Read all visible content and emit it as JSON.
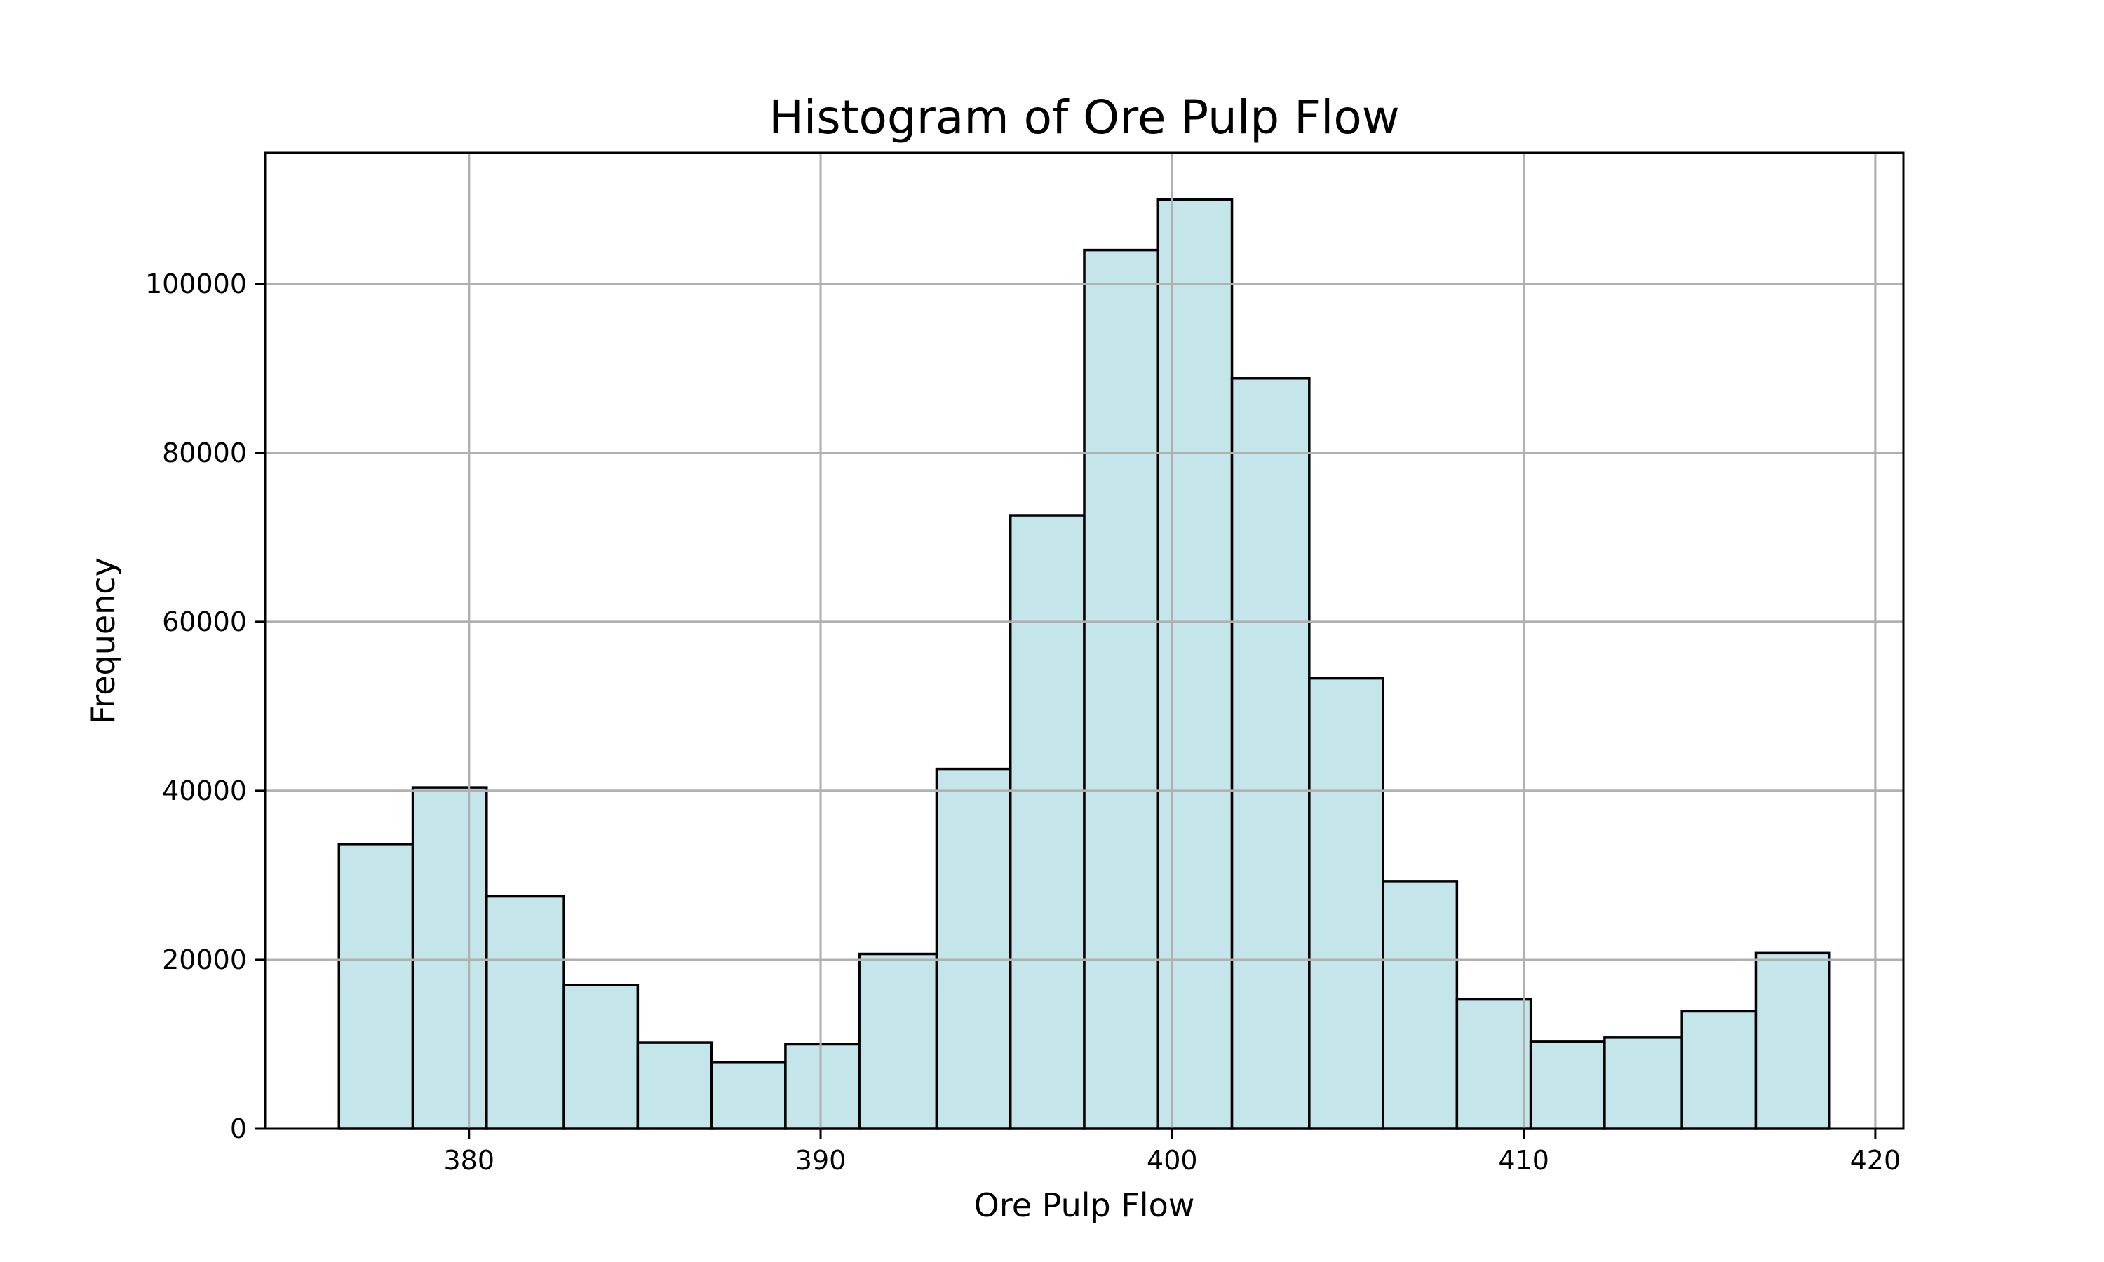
{
  "chart_data": {
    "type": "bar",
    "subtype": "histogram",
    "title": "Histogram of Ore Pulp Flow",
    "xlabel": "Ore Pulp Flow",
    "ylabel": "Frequency",
    "xlim": [
      374.2,
      420.8
    ],
    "ylim": [
      0,
      115500
    ],
    "xticks": [
      380,
      390,
      400,
      410,
      420
    ],
    "yticks": [
      0,
      20000,
      40000,
      60000,
      80000,
      100000
    ],
    "grid": true,
    "bar_color": "#c4e5ea",
    "edge_color": "#000000",
    "bins": [
      {
        "x0": 376.3,
        "x1": 378.4,
        "count": 33700
      },
      {
        "x0": 378.4,
        "x1": 380.5,
        "count": 40400
      },
      {
        "x0": 380.5,
        "x1": 382.7,
        "count": 27500
      },
      {
        "x0": 382.7,
        "x1": 384.8,
        "count": 17000
      },
      {
        "x0": 384.8,
        "x1": 386.9,
        "count": 10200
      },
      {
        "x0": 386.9,
        "x1": 389.0,
        "count": 7900
      },
      {
        "x0": 389.0,
        "x1": 391.1,
        "count": 10000
      },
      {
        "x0": 391.1,
        "x1": 393.3,
        "count": 20700
      },
      {
        "x0": 393.3,
        "x1": 395.4,
        "count": 42600
      },
      {
        "x0": 395.4,
        "x1": 397.5,
        "count": 72600
      },
      {
        "x0": 397.5,
        "x1": 399.6,
        "count": 104000
      },
      {
        "x0": 399.6,
        "x1": 401.7,
        "count": 110000
      },
      {
        "x0": 401.7,
        "x1": 403.9,
        "count": 88800
      },
      {
        "x0": 403.9,
        "x1": 406.0,
        "count": 53300
      },
      {
        "x0": 406.0,
        "x1": 408.1,
        "count": 29300
      },
      {
        "x0": 408.1,
        "x1": 410.2,
        "count": 15300
      },
      {
        "x0": 410.2,
        "x1": 412.3,
        "count": 10300
      },
      {
        "x0": 412.3,
        "x1": 414.5,
        "count": 10800
      },
      {
        "x0": 414.5,
        "x1": 416.6,
        "count": 13900
      },
      {
        "x0": 416.6,
        "x1": 418.7,
        "count": 20800
      }
    ]
  }
}
